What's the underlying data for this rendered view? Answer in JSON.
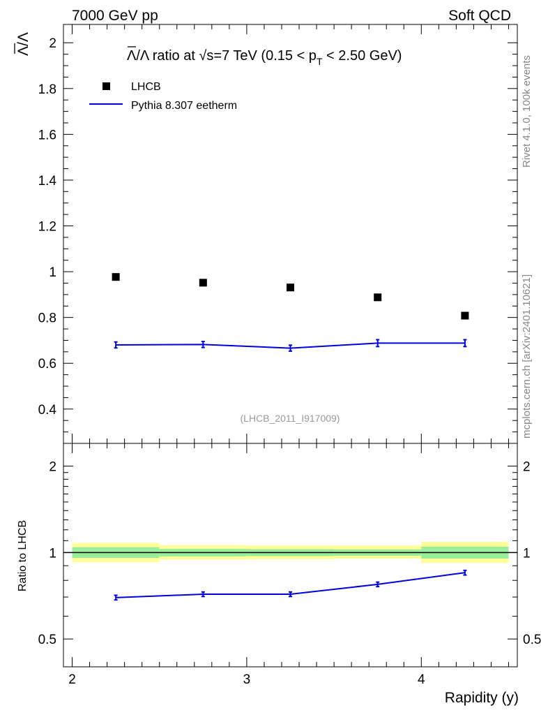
{
  "header": {
    "left": "7000 GeV pp",
    "right": "Soft QCD"
  },
  "side_labels": {
    "rivet": "Rivet 4.1.0,  100k events",
    "mcplots": "mcplots.cern.ch [arXiv:2401.10621]"
  },
  "chart_data": [
    {
      "type": "scatter",
      "panel": "main",
      "title_parts": {
        "lead": "Λ/Λ ratio at √s=7 TeV (0.15 < p",
        "sub": "T",
        "tail": " < 2.50 GeV)"
      },
      "ylabel": "Λ/Λ",
      "watermark": "(LHCB_2011_I917009)",
      "xlim": [
        1.95,
        4.55
      ],
      "ylim": [
        0.25,
        2.08
      ],
      "yticks": [
        0.4,
        0.6,
        0.8,
        1,
        1.2,
        1.4,
        1.6,
        1.8,
        2
      ],
      "ytick_labels": [
        "0.4",
        "0.6",
        "0.8",
        "1",
        "1.2",
        "1.4",
        "1.6",
        "1.8",
        "2"
      ],
      "legend": {
        "position": "top-left",
        "entries": [
          {
            "label": "LHCB",
            "style": "marker",
            "color": "#000000"
          },
          {
            "label": "Pythia 8.307 eetherm",
            "style": "line",
            "color": "#0000dd"
          }
        ]
      },
      "series": [
        {
          "name": "LHCB",
          "x": [
            2.25,
            2.75,
            3.25,
            3.75,
            4.25
          ],
          "y": [
            0.977,
            0.952,
            0.931,
            0.888,
            0.808
          ],
          "color": "#000000"
        },
        {
          "name": "Pythia 8.307 eetherm",
          "x": [
            2.25,
            2.75,
            3.25,
            3.75,
            4.25
          ],
          "y": [
            0.68,
            0.682,
            0.666,
            0.688,
            0.688
          ],
          "yerr": [
            0.013,
            0.013,
            0.013,
            0.015,
            0.015
          ],
          "color": "#0000dd"
        }
      ]
    },
    {
      "type": "line",
      "panel": "ratio",
      "ylabel": "Ratio to LHCB",
      "xlabel": "Rapidity (y)",
      "xlim": [
        1.95,
        4.55
      ],
      "ylim": [
        0.4,
        2.4
      ],
      "yscale": "log",
      "yticks": [
        0.5,
        1,
        2
      ],
      "ytick_labels": [
        "0.5",
        "1",
        "2"
      ],
      "xticks": [
        2,
        3,
        4
      ],
      "xtick_labels": [
        "2",
        "3",
        "4"
      ],
      "bands": [
        {
          "x0": 2.0,
          "x1": 2.5,
          "yellow": [
            0.925,
            1.08
          ],
          "green": [
            0.958,
            1.044
          ]
        },
        {
          "x0": 2.5,
          "x1": 3.0,
          "yellow": [
            0.945,
            1.06
          ],
          "green": [
            0.97,
            1.03
          ]
        },
        {
          "x0": 3.0,
          "x1": 3.5,
          "yellow": [
            0.948,
            1.058
          ],
          "green": [
            0.972,
            1.028
          ]
        },
        {
          "x0": 3.5,
          "x1": 4.0,
          "yellow": [
            0.952,
            1.058
          ],
          "green": [
            0.974,
            1.026
          ]
        },
        {
          "x0": 4.0,
          "x1": 4.5,
          "yellow": [
            0.92,
            1.09
          ],
          "green": [
            0.953,
            1.048
          ]
        }
      ],
      "band_colors": {
        "yellow": "#ffff99",
        "green": "#99ee99"
      },
      "series": [
        {
          "name": "Pythia 8.307 eetherm",
          "x": [
            2.25,
            2.75,
            3.25,
            3.75,
            4.25
          ],
          "y": [
            0.697,
            0.716,
            0.716,
            0.775,
            0.851
          ],
          "yerr": [
            0.013,
            0.013,
            0.013,
            0.014,
            0.016
          ],
          "color": "#0000dd"
        }
      ]
    }
  ]
}
